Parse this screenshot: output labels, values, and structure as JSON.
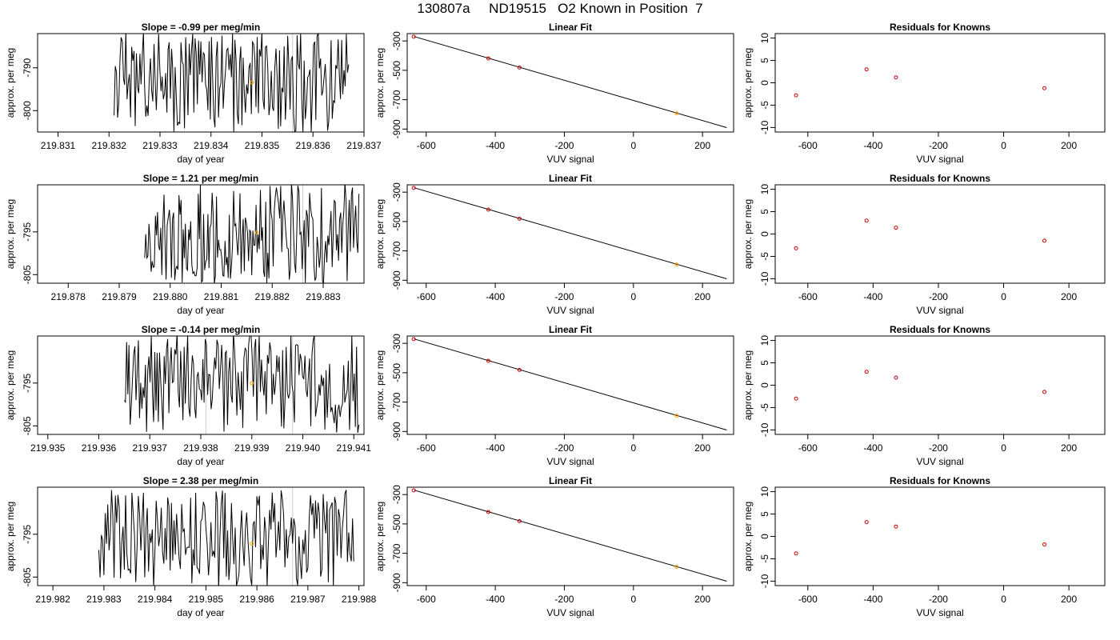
{
  "title": "130807a     ND19515   O2 Known in Position  7",
  "chart_data": [
    {
      "row": 1,
      "panels": [
        {
          "type": "line",
          "title": "Slope =  -0.99  per meg/min",
          "xlabel": "day of year",
          "ylabel": "approx. per meg",
          "xlim": [
            219.8306,
            219.837
          ],
          "ylim": [
            -805,
            -782
          ],
          "xticks": [
            219.831,
            219.832,
            219.833,
            219.834,
            219.835,
            219.836,
            219.837
          ],
          "xtick_labels": [
            "219.831",
            "219.832",
            "219.833",
            "219.834",
            "219.835",
            "219.836",
            "219.837"
          ],
          "yticks": [
            -790,
            -800
          ],
          "ytick_labels": [
            "-790",
            "-800"
          ],
          "vlines": [
            219.8356
          ],
          "series": [
            {
              "x_start": 219.8321,
              "x_end": 219.8367,
              "base": -793.4,
              "amp": 8.5,
              "seed": 1
            }
          ],
          "points": [
            {
              "x": 219.8348,
              "y": -793.4,
              "color": "#ffa500"
            }
          ]
        },
        {
          "type": "scatter",
          "title": "Linear Fit",
          "xlabel": "VUV signal",
          "ylabel": "approx. per meg",
          "xlim": [
            -655,
            290
          ],
          "ylim": [
            -920,
            -250
          ],
          "xticks": [
            -600,
            -400,
            -200,
            0,
            200
          ],
          "xtick_labels": [
            "-600",
            "-400",
            "-200",
            "0",
            "200"
          ],
          "yticks": [
            -300,
            -500,
            -700,
            -900
          ],
          "ytick_labels": [
            "-300",
            "-500",
            "-700",
            "-900"
          ],
          "fit_line": [
            [
              -635,
              -270
            ],
            [
              270,
              -890
            ]
          ],
          "points": [
            {
              "x": -636,
              "y": -271,
              "color": "#cc0000"
            },
            {
              "x": -420,
              "y": -419,
              "color": "#cc0000"
            },
            {
              "x": -330,
              "y": -481,
              "color": "#cc0000"
            },
            {
              "x": 125,
              "y": -793,
              "color": "#ffa500"
            }
          ]
        },
        {
          "type": "scatter",
          "title": "Residuals for Knowns",
          "xlabel": "VUV signal",
          "ylabel": "approx. per meg",
          "xlim": [
            -700,
            310
          ],
          "ylim": [
            -11,
            11
          ],
          "xticks": [
            -600,
            -400,
            -200,
            0,
            200
          ],
          "xtick_labels": [
            "-600",
            "-400",
            "-200",
            "0",
            "200"
          ],
          "yticks": [
            10,
            5,
            0,
            -5,
            -10
          ],
          "ytick_labels": [
            "10",
            "5",
            "0",
            "-5",
            "-10"
          ],
          "points": [
            {
              "x": -636,
              "y": -2.8,
              "color": "#cc0000"
            },
            {
              "x": -420,
              "y": 3.0,
              "color": "#cc0000"
            },
            {
              "x": -330,
              "y": 1.2,
              "color": "#cc0000"
            },
            {
              "x": 125,
              "y": -1.2,
              "color": "#cc0000"
            }
          ]
        }
      ]
    },
    {
      "row": 2,
      "panels": [
        {
          "type": "line",
          "title": "Slope =  1.21  per meg/min",
          "xlabel": "day of year",
          "ylabel": "approx. per meg",
          "xlim": [
            219.8774,
            219.8838
          ],
          "ylim": [
            -807,
            -784
          ],
          "xticks": [
            219.878,
            219.879,
            219.88,
            219.881,
            219.882,
            219.883
          ],
          "xtick_labels": [
            "219.878",
            "219.879",
            "219.880",
            "219.881",
            "219.882",
            "219.883"
          ],
          "yticks": [
            -795,
            -805
          ],
          "ytick_labels": [
            "-795",
            "-805"
          ],
          "vlines": [
            219.8826
          ],
          "series": [
            {
              "x_start": 219.8795,
              "x_end": 219.8837,
              "base": -795.2,
              "amp": 8.5,
              "seed": 2
            }
          ],
          "points": [
            {
              "x": 219.8817,
              "y": -795.2,
              "color": "#ffa500"
            }
          ]
        },
        {
          "type": "scatter",
          "title": "Linear Fit",
          "xlabel": "VUV signal",
          "ylabel": "approx. per meg",
          "xlim": [
            -655,
            290
          ],
          "ylim": [
            -920,
            -250
          ],
          "xticks": [
            -600,
            -400,
            -200,
            0,
            200
          ],
          "xtick_labels": [
            "-600",
            "-400",
            "-200",
            "0",
            "200"
          ],
          "yticks": [
            -300,
            -500,
            -700,
            -900
          ],
          "ytick_labels": [
            "-300",
            "-500",
            "-700",
            "-900"
          ],
          "fit_line": [
            [
              -635,
              -270
            ],
            [
              270,
              -890
            ]
          ],
          "points": [
            {
              "x": -636,
              "y": -271,
              "color": "#cc0000"
            },
            {
              "x": -420,
              "y": -419,
              "color": "#cc0000"
            },
            {
              "x": -330,
              "y": -481,
              "color": "#cc0000"
            },
            {
              "x": 125,
              "y": -793,
              "color": "#ffa500"
            }
          ]
        },
        {
          "type": "scatter",
          "title": "Residuals for Knowns",
          "xlabel": "VUV signal",
          "ylabel": "approx. per meg",
          "xlim": [
            -700,
            310
          ],
          "ylim": [
            -11,
            11
          ],
          "xticks": [
            -600,
            -400,
            -200,
            0,
            200
          ],
          "xtick_labels": [
            "-600",
            "-400",
            "-200",
            "0",
            "200"
          ],
          "yticks": [
            10,
            5,
            0,
            -5,
            -10
          ],
          "ytick_labels": [
            "10",
            "5",
            "0",
            "-5",
            "-10"
          ],
          "points": [
            {
              "x": -636,
              "y": -3.2,
              "color": "#cc0000"
            },
            {
              "x": -420,
              "y": 3.0,
              "color": "#cc0000"
            },
            {
              "x": -330,
              "y": 1.4,
              "color": "#cc0000"
            },
            {
              "x": 125,
              "y": -1.5,
              "color": "#cc0000"
            }
          ]
        }
      ]
    },
    {
      "row": 3,
      "panels": [
        {
          "type": "line",
          "title": "Slope =  -0.14  per meg/min",
          "xlabel": "day of year",
          "ylabel": "approx. per meg",
          "xlim": [
            219.9348,
            219.9412
          ],
          "ylim": [
            -807,
            -784
          ],
          "xticks": [
            219.935,
            219.936,
            219.937,
            219.938,
            219.939,
            219.94,
            219.941
          ],
          "xtick_labels": [
            "219.935",
            "219.936",
            "219.937",
            "219.938",
            "219.939",
            "219.940",
            "219.941"
          ],
          "yticks": [
            -795,
            -805
          ],
          "ytick_labels": [
            "-795",
            "-805"
          ],
          "vlines": [
            219.9381,
            219.9398
          ],
          "series": [
            {
              "x_start": 219.9365,
              "x_end": 219.9411,
              "base": -795.0,
              "amp": 8.5,
              "seed": 3
            }
          ],
          "points": [
            {
              "x": 219.939,
              "y": -795.0,
              "color": "#ffa500"
            }
          ]
        },
        {
          "type": "scatter",
          "title": "Linear Fit",
          "xlabel": "VUV signal",
          "ylabel": "approx. per meg",
          "xlim": [
            -655,
            290
          ],
          "ylim": [
            -920,
            -250
          ],
          "xticks": [
            -600,
            -400,
            -200,
            0,
            200
          ],
          "xtick_labels": [
            "-600",
            "-400",
            "-200",
            "0",
            "200"
          ],
          "yticks": [
            -300,
            -500,
            -700,
            -900
          ],
          "ytick_labels": [
            "-300",
            "-500",
            "-700",
            "-900"
          ],
          "fit_line": [
            [
              -635,
              -270
            ],
            [
              270,
              -890
            ]
          ],
          "points": [
            {
              "x": -636,
              "y": -271,
              "color": "#cc0000"
            },
            {
              "x": -420,
              "y": -419,
              "color": "#cc0000"
            },
            {
              "x": -330,
              "y": -481,
              "color": "#cc0000"
            },
            {
              "x": 125,
              "y": -793,
              "color": "#ffa500"
            }
          ]
        },
        {
          "type": "scatter",
          "title": "Residuals for Knowns",
          "xlabel": "VUV signal",
          "ylabel": "approx. per meg",
          "xlim": [
            -700,
            310
          ],
          "ylim": [
            -11,
            11
          ],
          "xticks": [
            -600,
            -400,
            -200,
            0,
            200
          ],
          "xtick_labels": [
            "-600",
            "-400",
            "-200",
            "0",
            "200"
          ],
          "yticks": [
            10,
            5,
            0,
            -5,
            -10
          ],
          "ytick_labels": [
            "10",
            "5",
            "0",
            "-5",
            "-10"
          ],
          "points": [
            {
              "x": -636,
              "y": -3.0,
              "color": "#cc0000"
            },
            {
              "x": -420,
              "y": 3.0,
              "color": "#cc0000"
            },
            {
              "x": -330,
              "y": 1.7,
              "color": "#cc0000"
            },
            {
              "x": 125,
              "y": -1.5,
              "color": "#cc0000"
            }
          ]
        }
      ]
    },
    {
      "row": 4,
      "panels": [
        {
          "type": "line",
          "title": "Slope =  2.38  per meg/min",
          "xlabel": "day of year",
          "ylabel": "approx. per meg",
          "xlim": [
            219.9817,
            219.9881
          ],
          "ylim": [
            -807,
            -784
          ],
          "xticks": [
            219.982,
            219.983,
            219.984,
            219.985,
            219.986,
            219.987,
            219.988
          ],
          "xtick_labels": [
            "219.982",
            "219.983",
            "219.984",
            "219.985",
            "219.986",
            "219.987",
            "219.988"
          ],
          "yticks": [
            -795,
            -805
          ],
          "ytick_labels": [
            "-795",
            "-805"
          ],
          "vlines": [
            219.9867
          ],
          "series": [
            {
              "x_start": 219.9829,
              "x_end": 219.9879,
              "base": -796.5,
              "amp": 8.5,
              "seed": 4
            }
          ],
          "points": [
            {
              "x": 219.9859,
              "y": -797.2,
              "color": "#ffa500"
            }
          ]
        },
        {
          "type": "scatter",
          "title": "Linear Fit",
          "xlabel": "VUV signal",
          "ylabel": "approx. per meg",
          "xlim": [
            -655,
            290
          ],
          "ylim": [
            -920,
            -250
          ],
          "xticks": [
            -600,
            -400,
            -200,
            0,
            200
          ],
          "xtick_labels": [
            "-600",
            "-400",
            "-200",
            "0",
            "200"
          ],
          "yticks": [
            -300,
            -500,
            -700,
            -900
          ],
          "ytick_labels": [
            "-300",
            "-500",
            "-700",
            "-900"
          ],
          "fit_line": [
            [
              -635,
              -270
            ],
            [
              270,
              -890
            ]
          ],
          "points": [
            {
              "x": -636,
              "y": -271,
              "color": "#cc0000"
            },
            {
              "x": -420,
              "y": -419,
              "color": "#cc0000"
            },
            {
              "x": -330,
              "y": -481,
              "color": "#cc0000"
            },
            {
              "x": 125,
              "y": -793,
              "color": "#ffa500"
            }
          ]
        },
        {
          "type": "scatter",
          "title": "Residuals for Knowns",
          "xlabel": "VUV signal",
          "ylabel": "approx. per meg",
          "xlim": [
            -700,
            310
          ],
          "ylim": [
            -11,
            11
          ],
          "xticks": [
            -600,
            -400,
            -200,
            0,
            200
          ],
          "xtick_labels": [
            "-600",
            "-400",
            "-200",
            "0",
            "200"
          ],
          "yticks": [
            10,
            5,
            0,
            -5,
            -10
          ],
          "ytick_labels": [
            "10",
            "5",
            "0",
            "-5",
            "-10"
          ],
          "points": [
            {
              "x": -636,
              "y": -3.8,
              "color": "#cc0000"
            },
            {
              "x": -420,
              "y": 3.2,
              "color": "#cc0000"
            },
            {
              "x": -330,
              "y": 2.2,
              "color": "#cc0000"
            },
            {
              "x": 125,
              "y": -1.8,
              "color": "#cc0000"
            }
          ]
        }
      ]
    }
  ]
}
